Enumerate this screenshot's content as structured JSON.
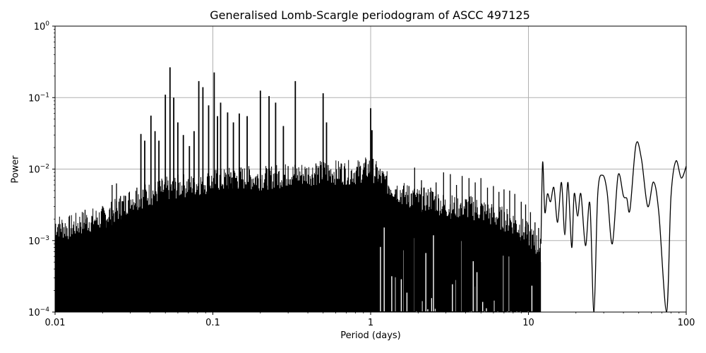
{
  "chart_data": {
    "type": "line",
    "title": "Generalised Lomb-Scargle periodogram of ASCC 497125",
    "xlabel": "Period (days)",
    "ylabel": "Power",
    "xscale": "log",
    "yscale": "log",
    "xlim": [
      0.01,
      100
    ],
    "ylim": [
      0.0001,
      1
    ],
    "grid": true,
    "legend": null,
    "x_ticks": [
      {
        "value": 0.01,
        "label": "0.01"
      },
      {
        "value": 0.1,
        "label": "0.1"
      },
      {
        "value": 1,
        "label": "1"
      },
      {
        "value": 10,
        "label": "10"
      },
      {
        "value": 100,
        "label": "100"
      }
    ],
    "y_ticks": [
      {
        "value": 0.0001,
        "base": "10",
        "exp": "−4"
      },
      {
        "value": 0.001,
        "base": "10",
        "exp": "−3"
      },
      {
        "value": 0.01,
        "base": "10",
        "exp": "−2"
      },
      {
        "value": 0.1,
        "base": "10",
        "exp": "−1"
      },
      {
        "value": 1,
        "base": "10",
        "exp": "0"
      }
    ],
    "line_color": "#000000",
    "grid_color": "#b0b0b0",
    "noise_envelope": {
      "description": "upper envelope of dense noise floor (period, power)",
      "points": [
        [
          0.01,
          0.0011
        ],
        [
          0.012,
          0.001
        ],
        [
          0.015,
          0.0012
        ],
        [
          0.02,
          0.0014
        ],
        [
          0.025,
          0.0018
        ],
        [
          0.03,
          0.0025
        ],
        [
          0.04,
          0.003
        ],
        [
          0.05,
          0.0035
        ],
        [
          0.07,
          0.004
        ],
        [
          0.1,
          0.0045
        ],
        [
          0.15,
          0.005
        ],
        [
          0.2,
          0.005
        ],
        [
          0.3,
          0.0055
        ],
        [
          0.5,
          0.006
        ],
        [
          0.8,
          0.006
        ],
        [
          1.0,
          0.007
        ],
        [
          1.3,
          0.004
        ],
        [
          1.6,
          0.003
        ],
        [
          2.0,
          0.0025
        ],
        [
          2.5,
          0.0025
        ],
        [
          3.0,
          0.002
        ],
        [
          4.0,
          0.002
        ],
        [
          5.0,
          0.0018
        ],
        [
          6.0,
          0.0015
        ],
        [
          8.0,
          0.0012
        ],
        [
          10,
          0.0008
        ],
        [
          12,
          0.0005
        ]
      ]
    },
    "noise_spikes": {
      "description": "representative individual noise spikes above the floor (period, power)",
      "points": [
        [
          0.0105,
          0.0017
        ],
        [
          0.013,
          0.0015
        ],
        [
          0.0145,
          0.0018
        ],
        [
          0.0155,
          0.0027
        ],
        [
          0.017,
          0.0016
        ],
        [
          0.0185,
          0.0021
        ],
        [
          0.021,
          0.0019
        ],
        [
          0.023,
          0.006
        ],
        [
          0.0245,
          0.0063
        ],
        [
          0.026,
          0.0042
        ],
        [
          0.028,
          0.0042
        ],
        [
          0.0305,
          0.0031
        ],
        [
          0.033,
          0.0055
        ],
        [
          0.037,
          0.0065
        ],
        [
          0.045,
          0.0055
        ],
        [
          0.06,
          0.007
        ],
        [
          0.075,
          0.0075
        ],
        [
          0.095,
          0.008
        ],
        [
          0.13,
          0.009
        ],
        [
          0.17,
          0.01
        ],
        [
          0.22,
          0.01
        ],
        [
          0.3,
          0.011
        ],
        [
          0.45,
          0.012
        ],
        [
          0.65,
          0.012
        ],
        [
          1.1,
          0.0105
        ],
        [
          1.25,
          0.008
        ],
        [
          1.45,
          0.0052
        ],
        [
          1.6,
          0.0052
        ],
        [
          1.75,
          0.0058
        ],
        [
          1.9,
          0.0105
        ],
        [
          2.1,
          0.007
        ],
        [
          2.4,
          0.0055
        ],
        [
          2.6,
          0.0065
        ],
        [
          2.9,
          0.009
        ],
        [
          3.2,
          0.0085
        ],
        [
          3.5,
          0.006
        ],
        [
          3.8,
          0.008
        ],
        [
          4.2,
          0.0075
        ],
        [
          4.6,
          0.0065
        ],
        [
          5.0,
          0.0075
        ],
        [
          5.5,
          0.0055
        ],
        [
          6.0,
          0.0058
        ],
        [
          6.5,
          0.0048
        ],
        [
          7.0,
          0.0052
        ],
        [
          7.6,
          0.005
        ],
        [
          8.2,
          0.0045
        ],
        [
          9.0,
          0.0035
        ],
        [
          9.6,
          0.0032
        ],
        [
          10.3,
          0.0025
        ],
        [
          11.0,
          0.0018
        ],
        [
          11.6,
          0.0015
        ]
      ]
    },
    "harmonic_peaks": {
      "description": "sharp aliasing peaks (period, power)",
      "points": [
        [
          0.035,
          0.031
        ],
        [
          0.037,
          0.025
        ],
        [
          0.0405,
          0.056
        ],
        [
          0.043,
          0.034
        ],
        [
          0.0455,
          0.025
        ],
        [
          0.05,
          0.11
        ],
        [
          0.0535,
          0.265
        ],
        [
          0.0565,
          0.1
        ],
        [
          0.06,
          0.045
        ],
        [
          0.065,
          0.03
        ],
        [
          0.071,
          0.021
        ],
        [
          0.076,
          0.034
        ],
        [
          0.0815,
          0.17
        ],
        [
          0.0865,
          0.14
        ],
        [
          0.094,
          0.078
        ],
        [
          0.102,
          0.225
        ],
        [
          0.107,
          0.055
        ],
        [
          0.112,
          0.085
        ],
        [
          0.124,
          0.062
        ],
        [
          0.135,
          0.045
        ],
        [
          0.147,
          0.06
        ],
        [
          0.165,
          0.055
        ],
        [
          0.2,
          0.125
        ],
        [
          0.227,
          0.105
        ],
        [
          0.25,
          0.085
        ],
        [
          0.28,
          0.04
        ],
        [
          0.333,
          0.17
        ],
        [
          0.5,
          0.115
        ],
        [
          0.525,
          0.045
        ],
        [
          1.0,
          0.071
        ],
        [
          1.02,
          0.035
        ]
      ]
    },
    "long_period_curve": {
      "description": "smooth periodogram beyond ~12 days (period, power)",
      "points": [
        [
          12.0,
          0.0009
        ],
        [
          12.3,
          0.0125
        ],
        [
          12.7,
          0.0025
        ],
        [
          13.2,
          0.0045
        ],
        [
          13.8,
          0.0035
        ],
        [
          14.5,
          0.0055
        ],
        [
          15.3,
          0.0018
        ],
        [
          16.2,
          0.0065
        ],
        [
          17.0,
          0.0012
        ],
        [
          17.8,
          0.0065
        ],
        [
          18.8,
          0.0008
        ],
        [
          19.5,
          0.0045
        ],
        [
          20.5,
          0.0022
        ],
        [
          21.5,
          0.0045
        ],
        [
          23.0,
          0.00085
        ],
        [
          24.5,
          0.0033
        ],
        [
          26.0,
          8e-05
        ],
        [
          27.5,
          0.0045
        ],
        [
          29.5,
          0.0082
        ],
        [
          31.5,
          0.0048
        ],
        [
          34.0,
          0.0009
        ],
        [
          37.0,
          0.0082
        ],
        [
          40.0,
          0.0042
        ],
        [
          42.0,
          0.0039
        ],
        [
          44.0,
          0.0027
        ],
        [
          48.0,
          0.022
        ],
        [
          52.0,
          0.014
        ],
        [
          57.0,
          0.003
        ],
        [
          62.0,
          0.0066
        ],
        [
          67.0,
          0.0025
        ],
        [
          75.0,
          0.0001
        ],
        [
          80.0,
          0.004
        ],
        [
          86.0,
          0.013
        ],
        [
          93.0,
          0.0075
        ],
        [
          100.0,
          0.011
        ]
      ]
    }
  },
  "figure": {
    "title": "Generalised Lomb-Scargle periodogram of ASCC 497125",
    "xlabel": "Period (days)",
    "ylabel": "Power"
  }
}
